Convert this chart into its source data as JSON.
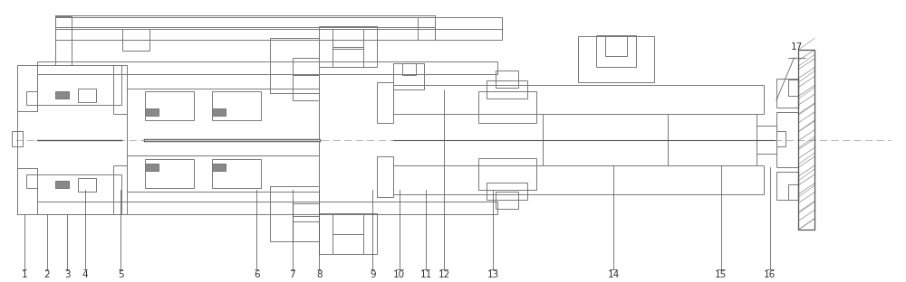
{
  "bg_color": "#ffffff",
  "lc": "#777777",
  "lc2": "#555555",
  "gray_fill": "#aaaaaa",
  "dark_fill": "#888888",
  "label_color": "#333333",
  "figure_width": 10.0,
  "figure_height": 3.12,
  "dpi": 100
}
